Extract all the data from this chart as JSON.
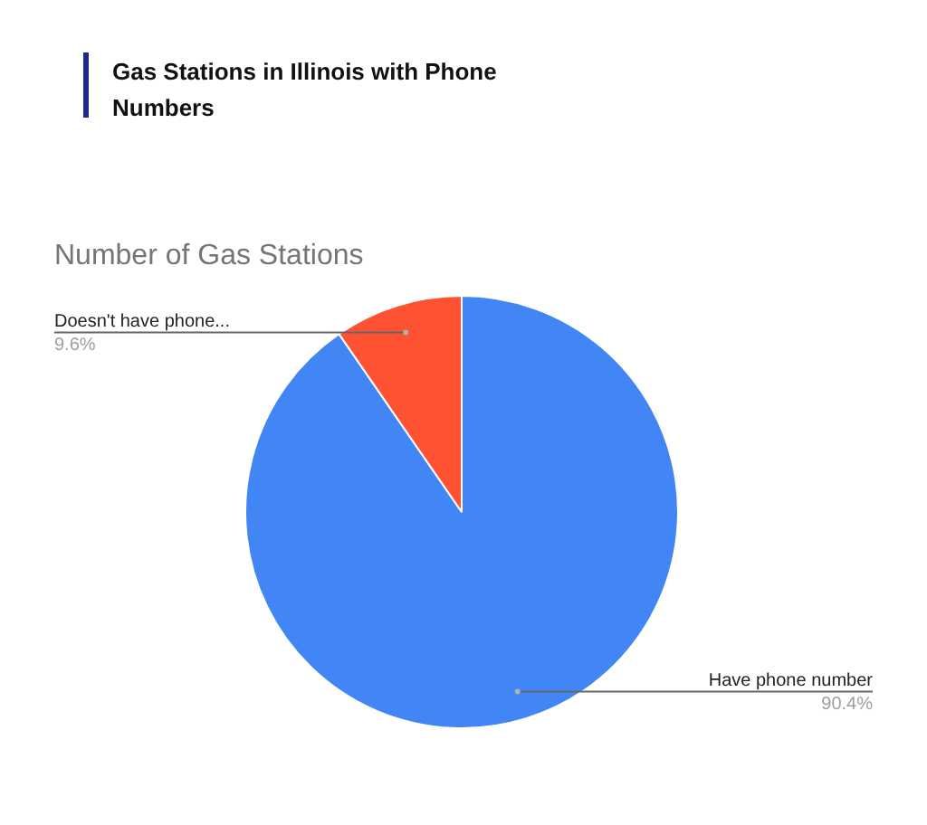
{
  "chart_data": {
    "type": "pie",
    "title": "Gas Stations in Illinois with Phone Numbers",
    "subtitle": "Number of Gas Stations",
    "categories": [
      "Have phone number",
      "Doesn't have phone..."
    ],
    "values": [
      90.4,
      9.6
    ],
    "colors": [
      "#4285f4",
      "#ff5233"
    ],
    "value_labels": [
      "90.4%",
      "9.6%"
    ],
    "legend": false
  }
}
